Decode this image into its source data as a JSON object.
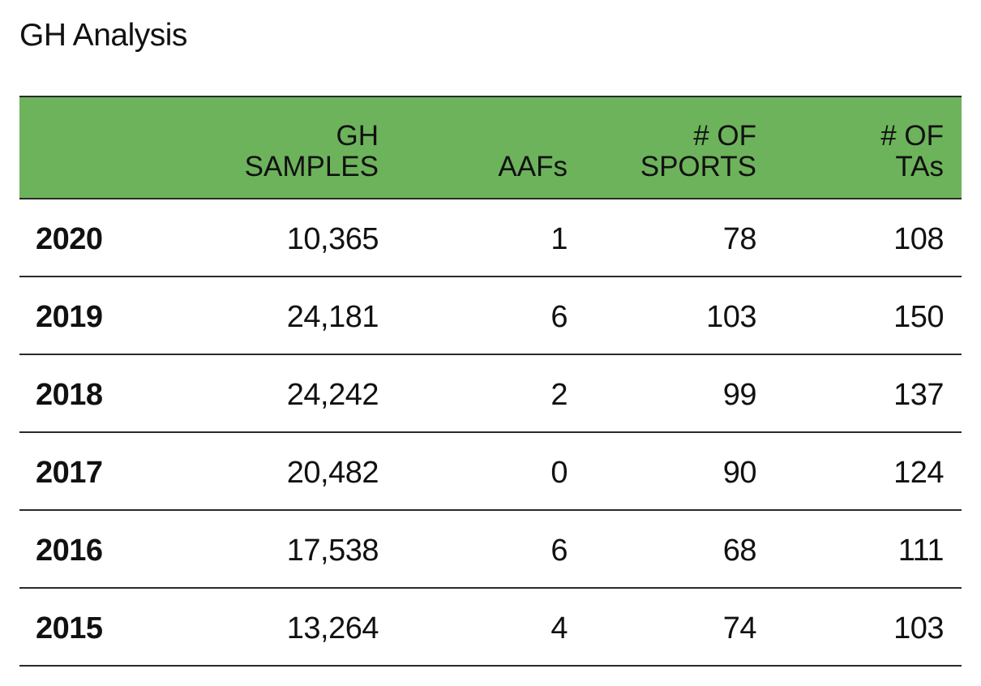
{
  "title": "GH Analysis",
  "chart_data": {
    "type": "table",
    "title": "GH Analysis",
    "columns": [
      {
        "lines": [
          "",
          ""
        ]
      },
      {
        "lines": [
          "GH",
          "SAMPLES"
        ]
      },
      {
        "lines": [
          "",
          "AAFs"
        ]
      },
      {
        "lines": [
          "# OF",
          "SPORTS"
        ]
      },
      {
        "lines": [
          "# OF",
          "TAs"
        ]
      }
    ],
    "rows": [
      {
        "year": "2020",
        "samples": "10,365",
        "aafs": "1",
        "sports": "78",
        "tas": "108"
      },
      {
        "year": "2019",
        "samples": "24,181",
        "aafs": "6",
        "sports": "103",
        "tas": "150"
      },
      {
        "year": "2018",
        "samples": "24,242",
        "aafs": "2",
        "sports": "99",
        "tas": "137"
      },
      {
        "year": "2017",
        "samples": "20,482",
        "aafs": "0",
        "sports": "90",
        "tas": "124"
      },
      {
        "year": "2016",
        "samples": "17,538",
        "aafs": "6",
        "sports": "68",
        "tas": "111"
      },
      {
        "year": "2015",
        "samples": "13,264",
        "aafs": "4",
        "sports": "74",
        "tas": "103"
      }
    ],
    "header_color": "#6db35b"
  }
}
